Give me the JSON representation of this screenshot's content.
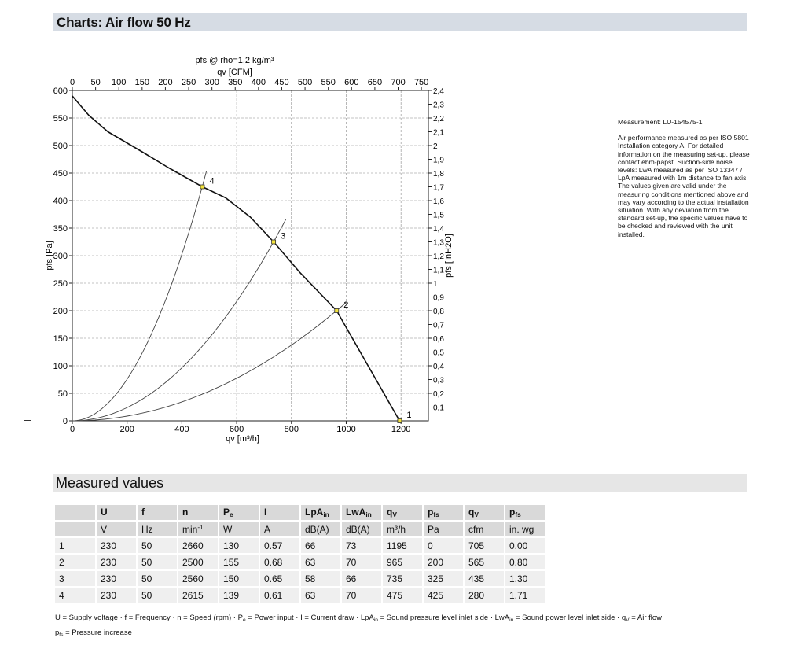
{
  "header": {
    "title": "Charts: Air flow 50 Hz"
  },
  "chart_data": {
    "type": "line",
    "title": "pfs @ rho=1,2 kg/m³",
    "xlabel": "qv [m³/h]",
    "ylabel": "pfs [Pa]",
    "x2label": "qv [CFM]",
    "y2label": "pfs [InH2O]",
    "xlim": [
      0,
      1300
    ],
    "ylim": [
      0,
      600
    ],
    "x2lim": [
      0,
      765
    ],
    "y2lim": [
      0,
      2.4
    ],
    "x_ticks": [
      0,
      200,
      400,
      600,
      800,
      1000,
      1200
    ],
    "y_ticks": [
      0,
      50,
      100,
      150,
      200,
      250,
      300,
      350,
      400,
      450,
      500,
      550,
      600
    ],
    "x2_ticks": [
      0,
      50,
      100,
      150,
      200,
      250,
      300,
      350,
      400,
      450,
      500,
      550,
      600,
      650,
      700,
      750
    ],
    "y2_ticks": [
      "0,1",
      "0,2",
      "0,3",
      "0,4",
      "0,5",
      "0,6",
      "0,7",
      "0,8",
      "0,9",
      "1",
      "1,1",
      "1,2",
      "1,3",
      "1,4",
      "1,5",
      "1,6",
      "1,7",
      "1,8",
      "1,9",
      "2",
      "2,1",
      "2,2",
      "2,3",
      "2,4"
    ],
    "grid": true,
    "fan_curve": {
      "x": [
        0,
        60,
        130,
        250,
        350,
        475,
        560,
        650,
        735,
        830,
        965,
        1080,
        1195
      ],
      "y": [
        590,
        555,
        525,
        490,
        460,
        425,
        405,
        370,
        325,
        270,
        200,
        100,
        0
      ]
    },
    "system_curves": [
      {
        "name": "1",
        "k": 0,
        "x_end": 1195
      },
      {
        "name": "2",
        "k": 0.000215,
        "x_end": 1000
      },
      {
        "name": "3",
        "k": 0.000602,
        "x_end": 780
      },
      {
        "name": "4",
        "k": 0.00189,
        "x_end": 490
      }
    ],
    "operating_points": [
      {
        "label": "1",
        "x": 1195,
        "y": 0
      },
      {
        "label": "2",
        "x": 965,
        "y": 200
      },
      {
        "label": "3",
        "x": 735,
        "y": 325
      },
      {
        "label": "4",
        "x": 475,
        "y": 425
      }
    ]
  },
  "notes": {
    "measurement": "Measurement: LU-154575-1",
    "description": "Air performance measured as per ISO 5801 Installation category A. For detailed information on the measuring set-up, please contact ebm-papst. Suction-side noise levels: LwA measured as per ISO 13347 / LpA measured with 1m distance to fan axis. The values given are valid under the measuring conditions mentioned above and may vary according to the actual installation situation. With any deviation from the standard set-up, the specific values have to be checked and reviewed with the unit installed."
  },
  "measured": {
    "title": "Measured values",
    "header": [
      {
        "main": "U",
        "sub": ""
      },
      {
        "main": "f",
        "sub": ""
      },
      {
        "main": "n",
        "sub": ""
      },
      {
        "main": "P",
        "sub": "e"
      },
      {
        "main": "I",
        "sub": ""
      },
      {
        "main": "LpA",
        "sub": "in"
      },
      {
        "main": "LwA",
        "sub": "in"
      },
      {
        "main": "q",
        "sub": "V"
      },
      {
        "main": "p",
        "sub": "fs"
      },
      {
        "main": "q",
        "sub": "V"
      },
      {
        "main": "p",
        "sub": "fs"
      }
    ],
    "units": [
      {
        "text": "V",
        "sup": ""
      },
      {
        "text": "Hz",
        "sup": ""
      },
      {
        "text": "min",
        "sup": "-1"
      },
      {
        "text": "W",
        "sup": ""
      },
      {
        "text": "A",
        "sup": ""
      },
      {
        "text": "dB(A)",
        "sup": ""
      },
      {
        "text": "dB(A)",
        "sup": ""
      },
      {
        "text": "m³/h",
        "sup": ""
      },
      {
        "text": "Pa",
        "sup": ""
      },
      {
        "text": "cfm",
        "sup": ""
      },
      {
        "text": "in. wg",
        "sup": ""
      }
    ],
    "rows": [
      [
        "1",
        "230",
        "50",
        "2660",
        "130",
        "0.57",
        "66",
        "73",
        "1195",
        "0",
        "705",
        "0.00"
      ],
      [
        "2",
        "230",
        "50",
        "2500",
        "155",
        "0.68",
        "63",
        "70",
        "965",
        "200",
        "565",
        "0.80"
      ],
      [
        "3",
        "230",
        "50",
        "2560",
        "150",
        "0.65",
        "58",
        "66",
        "735",
        "325",
        "435",
        "1.30"
      ],
      [
        "4",
        "230",
        "50",
        "2615",
        "139",
        "0.61",
        "63",
        "70",
        "475",
        "425",
        "280",
        "1.71"
      ]
    ]
  },
  "legend": {
    "l1_a": "U = Supply voltage · f = Frequency · n = Speed (rpm) · P",
    "l1_a_sub": "e",
    "l1_b": " = Power input · I = Current draw · LpA",
    "l1_b_sub": "in",
    "l1_c": " = Sound pressure level inlet side · LwA",
    "l1_c_sub": "in",
    "l1_d": " = Sound power level inlet side · q",
    "l1_d_sub": "V",
    "l1_e": " = Air flow",
    "l2_a": "p",
    "l2_a_sub": "fs",
    "l2_b": " = Pressure increase"
  }
}
